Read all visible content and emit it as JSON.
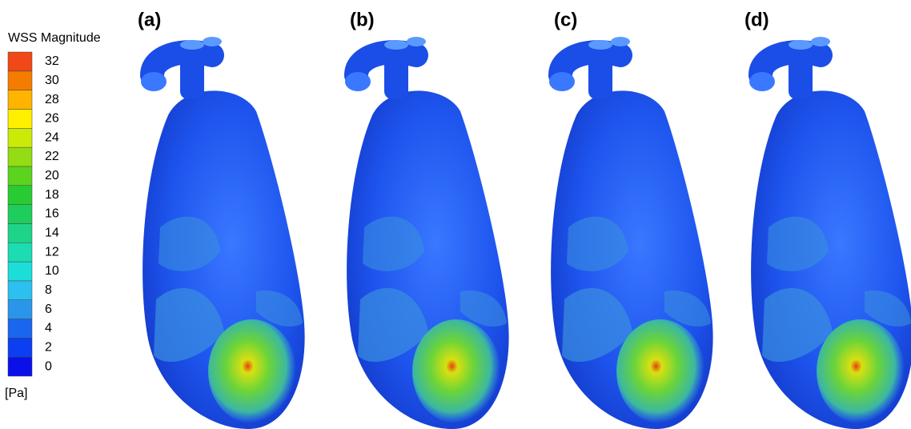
{
  "legend": {
    "title": "WSS Magnitude",
    "ticks": [
      0,
      2,
      4,
      6,
      8,
      10,
      12,
      14,
      16,
      18,
      20,
      22,
      24,
      26,
      28,
      30,
      32
    ],
    "colors": [
      "#0a10e8",
      "#0c3ef2",
      "#1a66ee",
      "#2a96ea",
      "#2cc0f0",
      "#1cded8",
      "#1cdcb2",
      "#1ed488",
      "#1ece5c",
      "#28cc32",
      "#5cd41e",
      "#94dc14",
      "#ccea08",
      "#fff000",
      "#ffb400",
      "#f47c00",
      "#f04818",
      "#e01010"
    ],
    "unit": "[Pa]"
  },
  "panels": [
    "(a)",
    "(b)",
    "(c)",
    "(d)"
  ]
}
